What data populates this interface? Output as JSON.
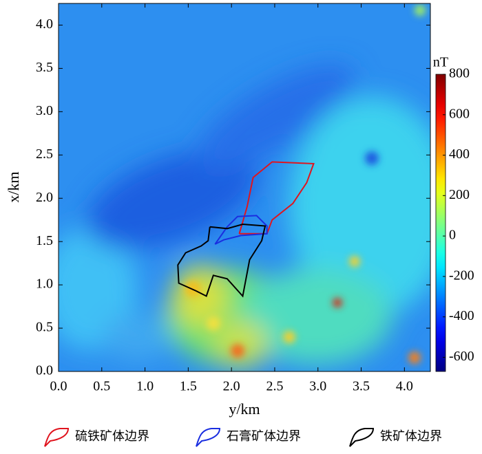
{
  "chart_data": {
    "type": "contour",
    "colormap": "jet",
    "xlabel": "y/km",
    "ylabel": "x/km",
    "xlim": [
      0,
      4.3
    ],
    "ylim": [
      0,
      4.25
    ],
    "xticks": [
      {
        "value": 0,
        "label": "0.0"
      },
      {
        "value": 0.5,
        "label": "0.5"
      },
      {
        "value": 1,
        "label": "1.0"
      },
      {
        "value": 1.5,
        "label": "1.5"
      },
      {
        "value": 2,
        "label": "2.0"
      },
      {
        "value": 2.5,
        "label": "2.5"
      },
      {
        "value": 3,
        "label": "3.0"
      },
      {
        "value": 3.5,
        "label": "3.5"
      },
      {
        "value": 4,
        "label": "4.0"
      }
    ],
    "yticks": [
      {
        "value": 0,
        "label": "0.0"
      },
      {
        "value": 0.5,
        "label": "0.5"
      },
      {
        "value": 1,
        "label": "1.0"
      },
      {
        "value": 1.5,
        "label": "1.5"
      },
      {
        "value": 2,
        "label": "2.0"
      },
      {
        "value": 2.5,
        "label": "2.5"
      },
      {
        "value": 3,
        "label": "3.0"
      },
      {
        "value": 3.5,
        "label": "3.5"
      },
      {
        "value": 4,
        "label": "4.0"
      }
    ],
    "colorbar": {
      "label": "nT",
      "lim": [
        -670,
        800
      ],
      "ticks": [
        -600,
        -400,
        -200,
        0,
        200,
        400,
        600,
        800
      ]
    },
    "series": [
      {
        "name": "硫铁矿体边界",
        "color": "#e0141e",
        "x": [
          2.09,
          2.18,
          2.25,
          2.47,
          2.95,
          2.87,
          2.71,
          2.47,
          2.41,
          2.09
        ],
        "values": [
          1.59,
          1.9,
          2.24,
          2.42,
          2.4,
          2.18,
          1.94,
          1.75,
          1.59,
          1.59
        ]
      },
      {
        "name": "石膏矿体边界",
        "color": "#1a2ee0",
        "x": [
          1.81,
          1.95,
          2.07,
          2.29,
          2.41,
          2.41,
          2.11,
          1.91,
          1.81
        ],
        "values": [
          1.47,
          1.67,
          1.79,
          1.8,
          1.68,
          1.59,
          1.57,
          1.52,
          1.47
        ]
      },
      {
        "name": "铁矿体边界",
        "color": "#000000",
        "x": [
          1.75,
          1.95,
          2.13,
          2.39,
          2.35,
          2.21,
          2.13,
          1.95,
          1.79,
          1.71,
          1.59,
          1.39,
          1.38,
          1.47,
          1.65,
          1.73,
          1.75
        ],
        "values": [
          1.67,
          1.65,
          1.7,
          1.68,
          1.51,
          1.29,
          0.87,
          1.07,
          1.11,
          0.87,
          0.93,
          1.02,
          1.23,
          1.37,
          1.45,
          1.51,
          1.67
        ]
      }
    ]
  }
}
